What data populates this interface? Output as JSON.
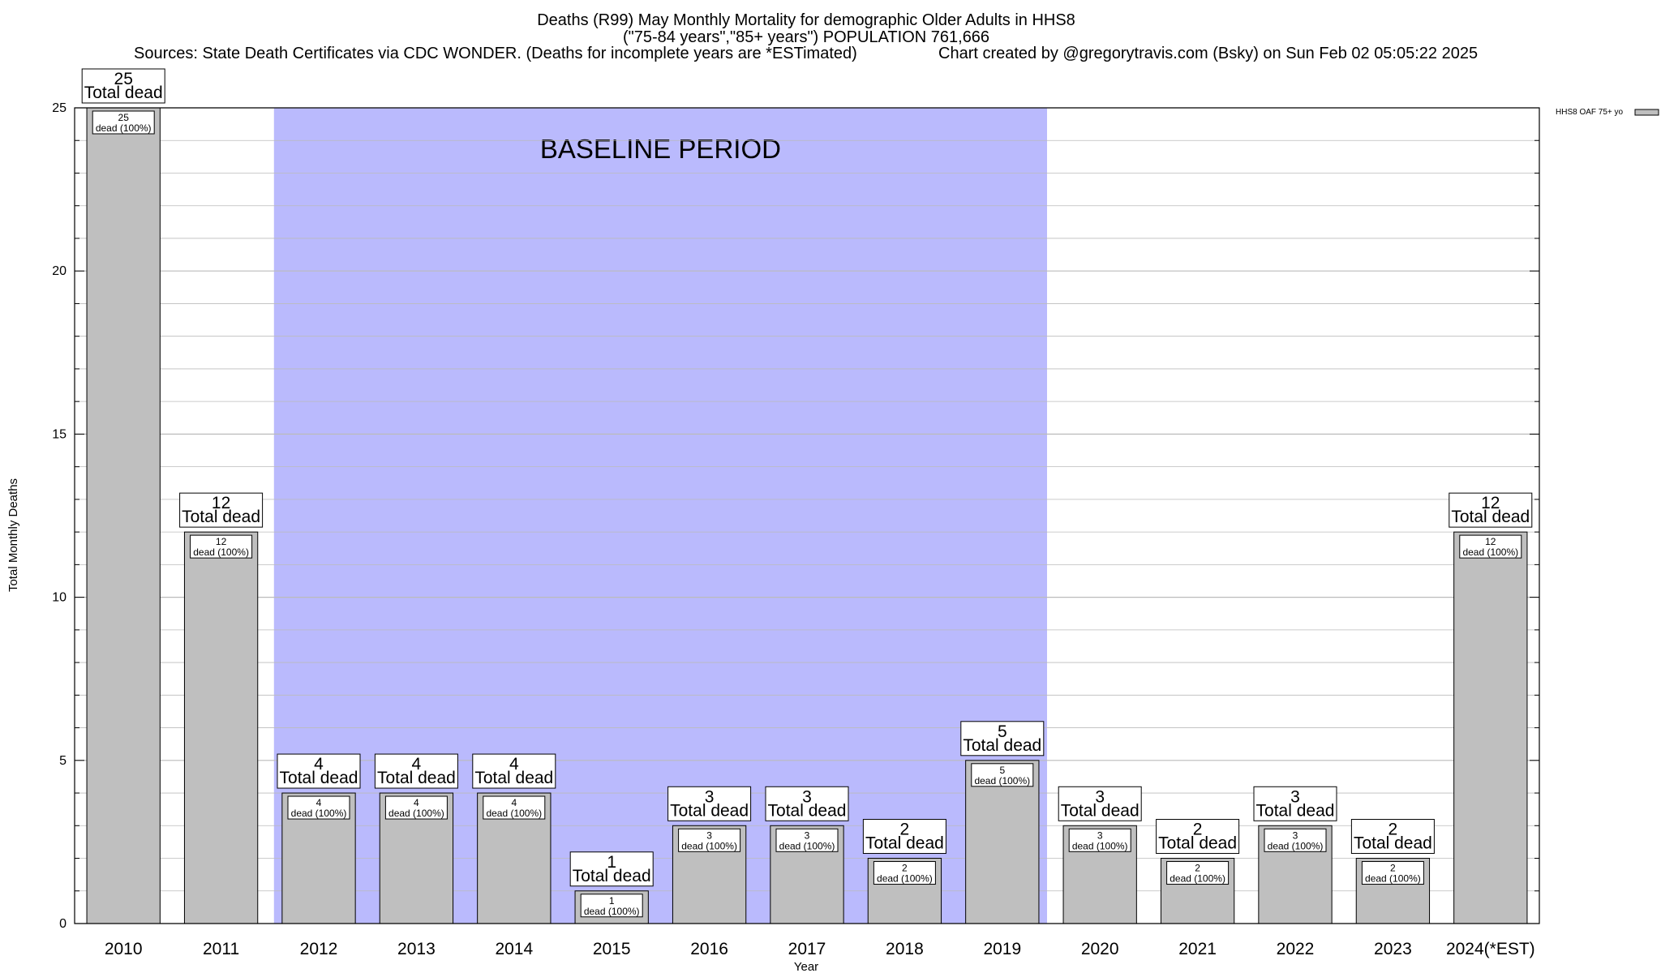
{
  "chart_data": {
    "type": "bar",
    "title_lines": [
      "Deaths (R99) May Monthly Mortality for demographic Older Adults in HHS8",
      "(\"75-84 years\",\"85+ years\") POPULATION 761,666"
    ],
    "sources": "Sources: State Death Certificates via CDC WONDER. (Deaths for incomplete years are *ESTimated)",
    "credit": "Chart created by @gregorytravis.com (Bsky) on Sun Feb 02 05:05:22 2025",
    "xlabel": "Year",
    "ylabel": "Total Monthly Deaths",
    "ylim": [
      0,
      25
    ],
    "yticks": [
      0,
      5,
      10,
      15,
      20,
      25
    ],
    "grid": true,
    "legend_position": "top-right",
    "categories": [
      "2010",
      "2011",
      "2012",
      "2013",
      "2014",
      "2015",
      "2016",
      "2017",
      "2018",
      "2019",
      "2020",
      "2021",
      "2022",
      "2023",
      "2024(*EST)"
    ],
    "series": [
      {
        "name": "HHS8 OAF 75+ yo",
        "values": [
          25,
          12,
          4,
          4,
          4,
          1,
          3,
          3,
          2,
          5,
          3,
          2,
          3,
          2,
          12
        ]
      }
    ],
    "top_labels": [
      [
        "25",
        "Total dead"
      ],
      [
        "12",
        "Total dead"
      ],
      [
        "4",
        "Total dead"
      ],
      [
        "4",
        "Total dead"
      ],
      [
        "4",
        "Total dead"
      ],
      [
        "1",
        "Total dead"
      ],
      [
        "3",
        "Total dead"
      ],
      [
        "3",
        "Total dead"
      ],
      [
        "2",
        "Total dead"
      ],
      [
        "5",
        "Total dead"
      ],
      [
        "3",
        "Total dead"
      ],
      [
        "2",
        "Total dead"
      ],
      [
        "3",
        "Total dead"
      ],
      [
        "2",
        "Total dead"
      ],
      [
        "12",
        "Total dead"
      ]
    ],
    "inner_labels": [
      [
        "25",
        "dead (100%)"
      ],
      [
        "12",
        "dead (100%)"
      ],
      [
        "4",
        "dead (100%)"
      ],
      [
        "4",
        "dead (100%)"
      ],
      [
        "4",
        "dead (100%)"
      ],
      [
        "1",
        "dead (100%)"
      ],
      [
        "3",
        "dead (100%)"
      ],
      [
        "3",
        "dead (100%)"
      ],
      [
        "2",
        "dead (100%)"
      ],
      [
        "5",
        "dead (100%)"
      ],
      [
        "3",
        "dead (100%)"
      ],
      [
        "2",
        "dead (100%)"
      ],
      [
        "3",
        "dead (100%)"
      ],
      [
        "2",
        "dead (100%)"
      ],
      [
        "12",
        "dead (100%)"
      ]
    ],
    "baseline_period": {
      "label": "BASELINE PERIOD",
      "from": "2012",
      "to": "2019",
      "color": "#babafd"
    },
    "colors": {
      "bar_fill": "#bfbfbf",
      "bar_stroke": "#000000",
      "grid": "#bbbbbb"
    }
  }
}
